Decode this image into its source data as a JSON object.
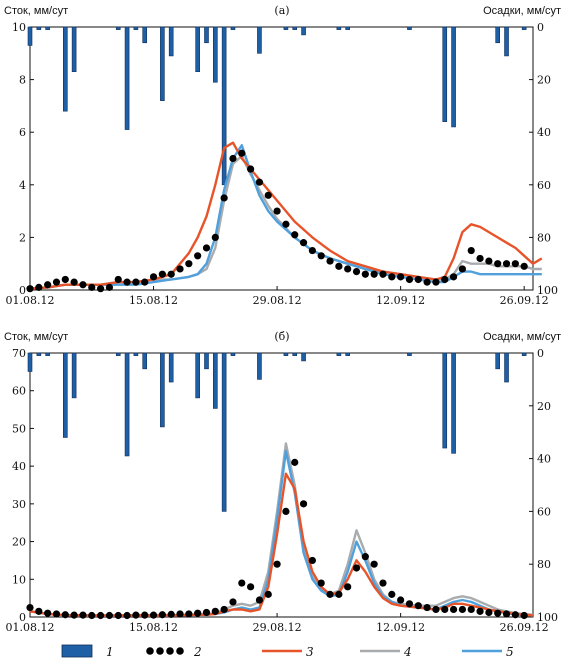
{
  "chart_data": [
    {
      "type": "line",
      "panel_label": "(а)",
      "ylabel_left": "Сток, мм/сут",
      "ylabel_right": "Осадки, мм/сут",
      "ylim": [
        0,
        10
      ],
      "yticks": [
        0,
        2,
        4,
        6,
        8,
        10
      ],
      "y2lim": [
        100,
        0
      ],
      "y2ticks": [
        0,
        20,
        40,
        60,
        80,
        100
      ],
      "xlim": [
        1,
        58
      ],
      "xticks": [
        {
          "v": 1,
          "label": "01.08.12"
        },
        {
          "v": 15,
          "label": "15.08.12"
        },
        {
          "v": 29,
          "label": "29.08.12"
        },
        {
          "v": 43,
          "label": "12.09.12"
        },
        {
          "v": 57,
          "label": "26.09.12"
        }
      ],
      "precip": [
        [
          1,
          7
        ],
        [
          2,
          1
        ],
        [
          3,
          1
        ],
        [
          5,
          32
        ],
        [
          6,
          17
        ],
        [
          11,
          1
        ],
        [
          12,
          39
        ],
        [
          13,
          1
        ],
        [
          14,
          6
        ],
        [
          16,
          28
        ],
        [
          17,
          11
        ],
        [
          20,
          17
        ],
        [
          21,
          6
        ],
        [
          22,
          21
        ],
        [
          23,
          60
        ],
        [
          24,
          1
        ],
        [
          27,
          10
        ],
        [
          30,
          1
        ],
        [
          31,
          1
        ],
        [
          32,
          3
        ],
        [
          36,
          1
        ],
        [
          37,
          1
        ],
        [
          44,
          1
        ],
        [
          48,
          36
        ],
        [
          49,
          38
        ],
        [
          54,
          6
        ],
        [
          55,
          11
        ],
        [
          57,
          1
        ],
        [
          58,
          17
        ],
        [
          59,
          6
        ]
      ],
      "series": [
        {
          "key": "obs",
          "x": [
            1,
            2,
            3,
            4,
            5,
            6,
            7,
            8,
            9,
            10,
            11,
            12,
            13,
            14,
            15,
            16,
            17,
            18,
            19,
            20,
            21,
            22,
            23,
            24,
            25,
            26,
            27,
            28,
            29,
            30,
            31,
            32,
            33,
            34,
            35,
            36,
            37,
            38,
            39,
            40,
            41,
            42,
            43,
            44,
            45,
            46,
            47,
            48,
            49,
            50,
            51,
            52,
            53,
            54,
            55,
            56,
            57,
            58,
            59
          ],
          "values": [
            0.05,
            0.1,
            0.2,
            0.3,
            0.4,
            0.3,
            0.2,
            0.1,
            0.05,
            0.1,
            0.4,
            0.3,
            0.3,
            0.3,
            0.5,
            0.6,
            0.6,
            0.8,
            1.0,
            1.3,
            1.6,
            2.0,
            3.5,
            5.0,
            5.2,
            4.6,
            4.1,
            3.6,
            3.0,
            2.5,
            2.1,
            1.8,
            1.5,
            1.3,
            1.1,
            0.9,
            0.8,
            0.7,
            0.6,
            0.6,
            0.6,
            0.5,
            0.5,
            0.4,
            0.4,
            0.3,
            0.3,
            0.4,
            0.5,
            0.8,
            1.5,
            1.2,
            1.1,
            1.0,
            1.0,
            1.0,
            0.9,
            0.8,
            0.9
          ]
        },
        {
          "key": "m3",
          "x": [
            1,
            3,
            5,
            7,
            9,
            11,
            13,
            15,
            17,
            19,
            20,
            21,
            22,
            23,
            24,
            25,
            26,
            27,
            28,
            29,
            31,
            33,
            35,
            37,
            39,
            41,
            43,
            45,
            47,
            48,
            49,
            50,
            51,
            52,
            53,
            54,
            55,
            56,
            57,
            58,
            59
          ],
          "values": [
            0.05,
            0.1,
            0.2,
            0.2,
            0.2,
            0.3,
            0.3,
            0.4,
            0.6,
            1.4,
            2.0,
            2.8,
            4.0,
            5.4,
            5.6,
            5.0,
            4.6,
            4.2,
            3.8,
            3.4,
            2.6,
            2.0,
            1.5,
            1.1,
            0.9,
            0.7,
            0.6,
            0.5,
            0.4,
            0.5,
            1.2,
            2.2,
            2.5,
            2.4,
            2.2,
            2.0,
            1.8,
            1.6,
            1.3,
            1.0,
            1.2
          ]
        },
        {
          "key": "m4",
          "x": [
            1,
            3,
            5,
            7,
            9,
            11,
            13,
            15,
            17,
            19,
            20,
            21,
            22,
            23,
            24,
            25,
            26,
            27,
            28,
            29,
            31,
            33,
            35,
            37,
            39,
            41,
            43,
            45,
            47,
            48,
            49,
            50,
            51,
            52,
            53,
            54,
            55,
            56,
            57,
            58,
            59
          ],
          "values": [
            0.05,
            0.1,
            0.2,
            0.2,
            0.2,
            0.3,
            0.3,
            0.4,
            0.4,
            0.5,
            0.6,
            0.8,
            1.6,
            3.4,
            4.8,
            5.1,
            4.4,
            3.8,
            3.2,
            2.7,
            2.0,
            1.5,
            1.2,
            1.0,
            0.8,
            0.7,
            0.6,
            0.5,
            0.4,
            0.4,
            0.6,
            1.1,
            1.0,
            1.0,
            1.0,
            0.9,
            0.9,
            0.9,
            0.9,
            0.8,
            0.8
          ]
        },
        {
          "key": "m5",
          "x": [
            1,
            3,
            5,
            7,
            9,
            11,
            13,
            15,
            17,
            19,
            20,
            21,
            22,
            23,
            24,
            25,
            26,
            27,
            28,
            29,
            31,
            33,
            35,
            37,
            39,
            41,
            43,
            45,
            47,
            48,
            49,
            50,
            51,
            52,
            53,
            54,
            55,
            56,
            57,
            58,
            59
          ],
          "values": [
            0.05,
            0.1,
            0.2,
            0.2,
            0.2,
            0.2,
            0.2,
            0.3,
            0.4,
            0.5,
            0.6,
            1.0,
            2.0,
            3.8,
            5.0,
            5.5,
            4.5,
            3.6,
            3.0,
            2.6,
            2.0,
            1.5,
            1.2,
            1.0,
            0.8,
            0.6,
            0.5,
            0.4,
            0.3,
            0.3,
            0.5,
            0.7,
            0.7,
            0.6,
            0.6,
            0.6,
            0.6,
            0.6,
            0.6,
            0.6,
            0.6
          ]
        }
      ]
    },
    {
      "type": "line",
      "panel_label": "(б)",
      "ylabel_left": "Сток, мм/сут",
      "ylabel_right": "Осадки, мм/сут",
      "ylim": [
        0,
        70
      ],
      "yticks": [
        0,
        10,
        20,
        30,
        40,
        50,
        60,
        70
      ],
      "y2lim": [
        100,
        0
      ],
      "y2ticks": [
        0,
        20,
        40,
        60,
        80,
        100
      ],
      "xlim": [
        1,
        58
      ],
      "xticks": [
        {
          "v": 1,
          "label": "01.08.12"
        },
        {
          "v": 15,
          "label": "15.08.12"
        },
        {
          "v": 29,
          "label": "29.08.12"
        },
        {
          "v": 43,
          "label": "12.09.12"
        },
        {
          "v": 57,
          "label": "26.09.12"
        }
      ],
      "precip": [
        [
          1,
          7
        ],
        [
          2,
          1
        ],
        [
          3,
          1
        ],
        [
          5,
          32
        ],
        [
          6,
          17
        ],
        [
          11,
          1
        ],
        [
          12,
          39
        ],
        [
          13,
          1
        ],
        [
          14,
          6
        ],
        [
          16,
          28
        ],
        [
          17,
          11
        ],
        [
          20,
          17
        ],
        [
          21,
          6
        ],
        [
          22,
          21
        ],
        [
          23,
          60
        ],
        [
          24,
          1
        ],
        [
          27,
          10
        ],
        [
          30,
          1
        ],
        [
          31,
          1
        ],
        [
          32,
          3
        ],
        [
          36,
          1
        ],
        [
          37,
          1
        ],
        [
          44,
          1
        ],
        [
          48,
          36
        ],
        [
          49,
          38
        ],
        [
          54,
          6
        ],
        [
          55,
          11
        ],
        [
          57,
          1
        ],
        [
          58,
          17
        ],
        [
          59,
          6
        ]
      ],
      "series": [
        {
          "key": "obs",
          "x": [
            1,
            2,
            3,
            4,
            5,
            6,
            7,
            8,
            9,
            10,
            11,
            12,
            13,
            14,
            15,
            16,
            17,
            18,
            19,
            20,
            21,
            22,
            23,
            24,
            25,
            26,
            27,
            28,
            29,
            30,
            31,
            32,
            33,
            34,
            35,
            36,
            37,
            38,
            39,
            40,
            41,
            42,
            43,
            44,
            45,
            46,
            47,
            48,
            49,
            50,
            51,
            52,
            53,
            54,
            55,
            56,
            57,
            58
          ],
          "values": [
            2.5,
            1.5,
            1.0,
            0.8,
            0.6,
            0.5,
            0.5,
            0.4,
            0.4,
            0.4,
            0.4,
            0.4,
            0.5,
            0.5,
            0.5,
            0.6,
            0.7,
            0.8,
            0.8,
            1.0,
            1.2,
            1.5,
            2.0,
            4.0,
            9.0,
            8.0,
            4.5,
            6.0,
            14.0,
            28.0,
            41.0,
            30.0,
            15.0,
            9.0,
            6.0,
            6.0,
            8.0,
            13.0,
            16.0,
            14.0,
            9.0,
            6.0,
            4.5,
            3.5,
            3.0,
            2.5,
            2.0,
            2.0,
            2.0,
            2.0,
            2.0,
            1.5,
            1.2,
            1.0,
            0.8,
            0.6,
            0.4,
            0.3
          ]
        },
        {
          "key": "m3",
          "x": [
            1,
            3,
            5,
            7,
            9,
            11,
            13,
            15,
            17,
            19,
            21,
            22,
            23,
            24,
            25,
            26,
            27,
            28,
            29,
            30,
            31,
            32,
            33,
            34,
            35,
            36,
            37,
            38,
            39,
            40,
            41,
            42,
            43,
            45,
            47,
            48,
            49,
            50,
            51,
            52,
            53,
            54,
            55,
            56,
            57,
            58
          ],
          "values": [
            1.5,
            0.8,
            0.5,
            0.4,
            0.4,
            0.4,
            0.4,
            0.4,
            0.4,
            0.5,
            0.6,
            0.8,
            1.5,
            2.0,
            2.0,
            1.5,
            2.0,
            8.0,
            22.0,
            38.0,
            34.0,
            20.0,
            12.0,
            8.0,
            6.0,
            6.5,
            10.0,
            15.0,
            12.0,
            8.0,
            5.0,
            3.5,
            3.0,
            2.5,
            2.0,
            2.5,
            3.5,
            3.5,
            3.0,
            2.5,
            2.0,
            1.5,
            1.2,
            0.8,
            0.6,
            0.4
          ]
        },
        {
          "key": "m4",
          "x": [
            1,
            3,
            5,
            7,
            9,
            11,
            13,
            15,
            17,
            19,
            21,
            22,
            23,
            24,
            25,
            26,
            27,
            28,
            29,
            30,
            31,
            32,
            33,
            34,
            35,
            36,
            37,
            38,
            39,
            40,
            41,
            42,
            43,
            45,
            47,
            48,
            49,
            50,
            51,
            52,
            53,
            54,
            55,
            56,
            57,
            58
          ],
          "values": [
            1.5,
            0.8,
            0.5,
            0.4,
            0.4,
            0.4,
            0.5,
            0.5,
            0.5,
            0.7,
            0.8,
            1.0,
            2.0,
            3.0,
            3.5,
            3.0,
            4.0,
            12.0,
            28.0,
            46.0,
            35.0,
            18.0,
            11.0,
            7.5,
            6.0,
            7.0,
            14.0,
            23.0,
            17.0,
            10.0,
            6.0,
            4.0,
            3.5,
            3.0,
            3.0,
            4.0,
            5.0,
            5.5,
            5.0,
            4.0,
            3.0,
            2.0,
            1.5,
            1.0,
            0.8,
            0.6
          ]
        },
        {
          "key": "m5",
          "x": [
            1,
            3,
            5,
            7,
            9,
            11,
            13,
            15,
            17,
            19,
            21,
            22,
            23,
            24,
            25,
            26,
            27,
            28,
            29,
            30,
            31,
            32,
            33,
            34,
            35,
            36,
            37,
            38,
            39,
            40,
            41,
            42,
            43,
            45,
            47,
            48,
            49,
            50,
            51,
            52,
            53,
            54,
            55,
            56,
            57,
            58
          ],
          "values": [
            1.5,
            0.8,
            0.5,
            0.4,
            0.4,
            0.4,
            0.4,
            0.4,
            0.4,
            0.5,
            0.6,
            0.8,
            1.2,
            2.0,
            2.5,
            2.0,
            2.5,
            10.0,
            26.0,
            44.0,
            33.0,
            17.0,
            10.0,
            7.0,
            5.5,
            6.0,
            12.0,
            20.0,
            15.0,
            9.0,
            5.5,
            4.0,
            3.0,
            2.5,
            2.0,
            3.0,
            4.0,
            4.5,
            4.0,
            3.0,
            2.0,
            1.5,
            1.0,
            0.7,
            0.5,
            0.4
          ]
        }
      ]
    }
  ],
  "legend": [
    {
      "key": "precip",
      "label": "1",
      "color": "#1f5fa6",
      "kind": "bar"
    },
    {
      "key": "obs",
      "label": "2",
      "color": "#000000",
      "kind": "dots"
    },
    {
      "key": "m3",
      "label": "3",
      "color": "#e8542a",
      "kind": "line"
    },
    {
      "key": "m4",
      "label": "4",
      "color": "#a9acaf",
      "kind": "line"
    },
    {
      "key": "m5",
      "label": "5",
      "color": "#4fa0dc",
      "kind": "line"
    }
  ]
}
